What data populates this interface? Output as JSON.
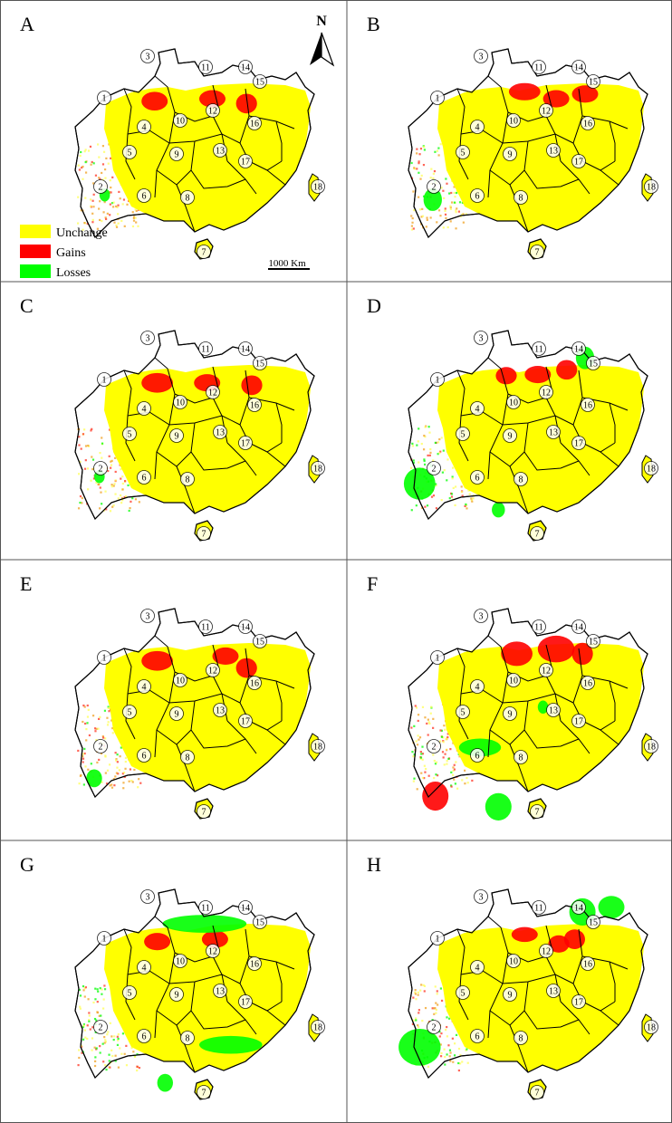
{
  "figure": {
    "panels": [
      {
        "letter": "A",
        "gains": [
          [
            0.33,
            0.06,
            0.05,
            0.028
          ],
          [
            0.55,
            0.05,
            0.05,
            0.025
          ],
          [
            0.68,
            0.07,
            0.04,
            0.03
          ]
        ],
        "losses": [
          [
            0.14,
            0.6,
            0.02,
            0.02
          ]
        ],
        "speckle_gain": 0.25,
        "speckle_loss": 0.02
      },
      {
        "letter": "B",
        "gains": [
          [
            0.47,
            0.02,
            0.06,
            0.025
          ],
          [
            0.59,
            0.05,
            0.05,
            0.025
          ],
          [
            0.7,
            0.03,
            0.05,
            0.025
          ]
        ],
        "losses": [
          [
            0.12,
            0.62,
            0.035,
            0.04
          ]
        ],
        "speckle_gain": 0.2,
        "speckle_loss": 0.05
      },
      {
        "letter": "C",
        "gains": [
          [
            0.34,
            0.06,
            0.06,
            0.03
          ],
          [
            0.53,
            0.06,
            0.05,
            0.025
          ],
          [
            0.7,
            0.07,
            0.04,
            0.03
          ]
        ],
        "losses": [
          [
            0.12,
            0.6,
            0.02,
            0.02
          ]
        ],
        "speckle_gain": 0.22,
        "speckle_loss": 0.03
      },
      {
        "letter": "D",
        "gains": [
          [
            0.4,
            0.03,
            0.04,
            0.025
          ],
          [
            0.52,
            0.025,
            0.05,
            0.025
          ],
          [
            0.63,
            0.005,
            0.04,
            0.03
          ]
        ],
        "losses": [
          [
            0.07,
            0.63,
            0.06,
            0.06
          ],
          [
            0.7,
            0.1,
            0.035,
            0.04
          ],
          [
            0.37,
            0.74,
            0.025,
            0.025
          ]
        ],
        "speckle_gain": 0.2,
        "speckle_loss": 0.15
      },
      {
        "letter": "E",
        "gains": [
          [
            0.34,
            0.06,
            0.06,
            0.03
          ],
          [
            0.6,
            0.04,
            0.05,
            0.025
          ],
          [
            0.68,
            0.09,
            0.04,
            0.03
          ]
        ],
        "losses": [
          [
            0.1,
            0.7,
            0.03,
            0.03
          ]
        ],
        "speckle_gain": 0.25,
        "speckle_loss": 0.04
      },
      {
        "letter": "F",
        "gains": [
          [
            0.44,
            0.03,
            0.06,
            0.04
          ],
          [
            0.59,
            0.01,
            0.07,
            0.045
          ],
          [
            0.69,
            0.03,
            0.04,
            0.035
          ],
          [
            0.13,
            0.63,
            0.05,
            0.05
          ]
        ],
        "losses": [
          [
            0.3,
            0.57,
            0.08,
            0.03
          ],
          [
            0.37,
            0.82,
            0.05,
            0.05
          ],
          [
            0.54,
            0.4,
            0.02,
            0.02
          ]
        ],
        "speckle_gain": 0.3,
        "speckle_loss": 0.06
      },
      {
        "letter": "G",
        "gains": [
          [
            0.34,
            0.06,
            0.05,
            0.025
          ],
          [
            0.56,
            0.05,
            0.05,
            0.025
          ]
        ],
        "losses": [
          [
            0.52,
            0.13,
            0.16,
            0.03
          ],
          [
            0.62,
            0.64,
            0.12,
            0.03
          ],
          [
            0.37,
            0.8,
            0.03,
            0.03
          ]
        ],
        "speckle_gain": 0.15,
        "speckle_loss": 0.15
      },
      {
        "letter": "H",
        "gains": [
          [
            0.47,
            0.03,
            0.05,
            0.02
          ],
          [
            0.6,
            0.07,
            0.04,
            0.025
          ],
          [
            0.66,
            0.05,
            0.04,
            0.03
          ]
        ],
        "losses": [
          [
            0.07,
            0.65,
            0.08,
            0.07
          ],
          [
            0.69,
            0.08,
            0.05,
            0.05
          ],
          [
            0.8,
            0.06,
            0.05,
            0.04
          ]
        ],
        "speckle_gain": 0.18,
        "speckle_loss": 0.12
      }
    ],
    "region_numbers": [
      "1",
      "2",
      "3",
      "4",
      "5",
      "6",
      "7",
      "8",
      "9",
      "10",
      "11",
      "12",
      "13",
      "14",
      "15",
      "16",
      "17",
      "18"
    ],
    "legend": {
      "items": [
        {
          "label": "Unchange",
          "color": "#ffff00"
        },
        {
          "label": "Gains",
          "color": "#ff0000"
        },
        {
          "label": "Losses",
          "color": "#00ff00"
        }
      ]
    },
    "scale_bar": "1000 Km",
    "north_label": "N",
    "colors": {
      "unchange": "#ffff00",
      "gains": "#ff0000",
      "losses": "#00ff00",
      "outline": "#000000",
      "background": "#ffffff"
    }
  }
}
